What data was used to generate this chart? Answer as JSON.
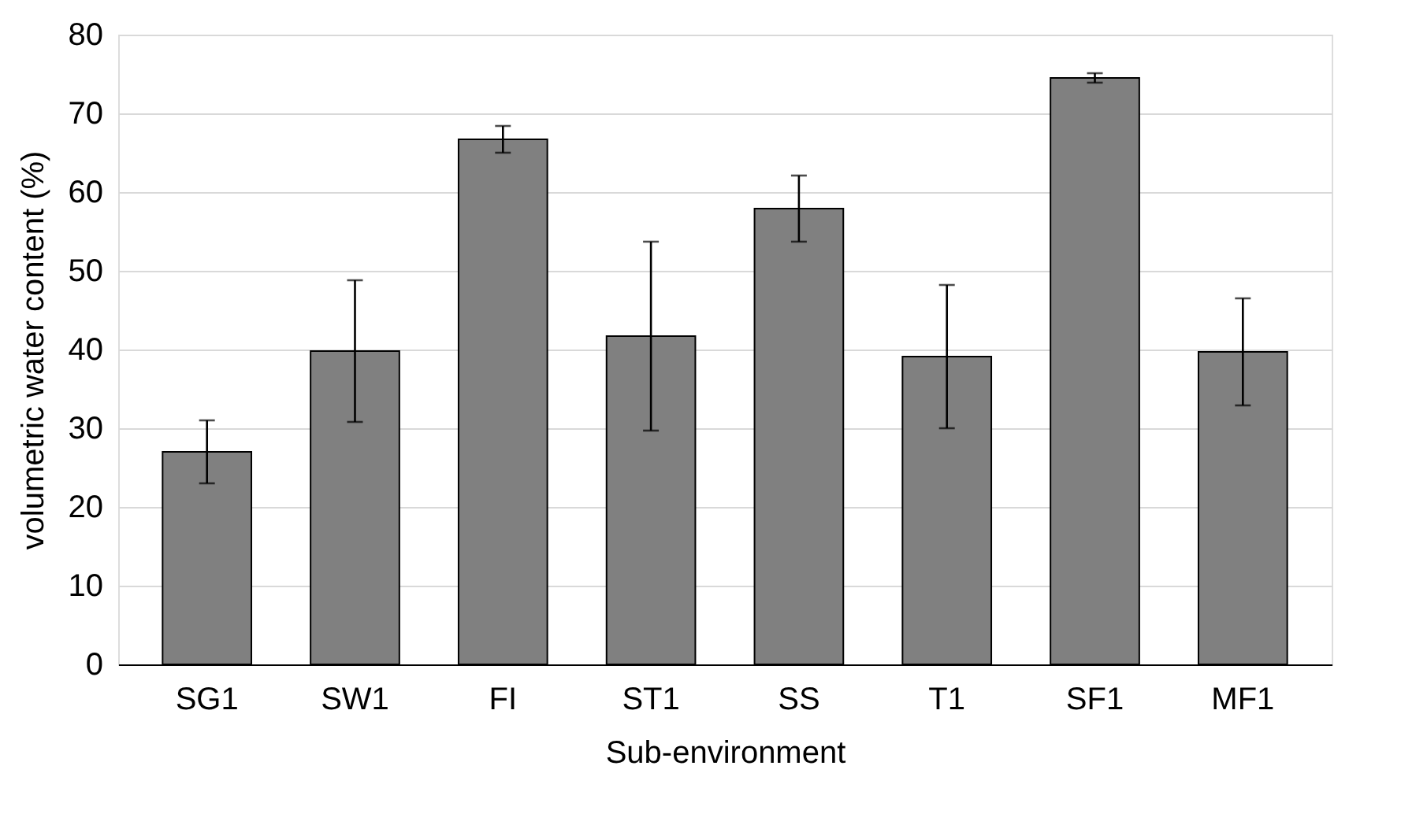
{
  "chart_data": {
    "type": "bar",
    "xlabel": "Sub-environment",
    "ylabel": "volumetric water content (%)",
    "categories": [
      "SG1",
      "SW1",
      "FI",
      "ST1",
      "SS",
      "T1",
      "SF1",
      "MF1"
    ],
    "values": [
      27,
      39.8,
      66.7,
      41.7,
      57.9,
      39.1,
      74.5,
      39.7
    ],
    "errors": [
      4,
      9,
      1.7,
      12,
      4.2,
      9.1,
      0.6,
      6.8
    ],
    "color": "#808080",
    "ylim": [
      0,
      80
    ],
    "yticks": [
      0,
      10,
      20,
      30,
      40,
      50,
      60,
      70,
      80
    ],
    "grid": "y"
  }
}
